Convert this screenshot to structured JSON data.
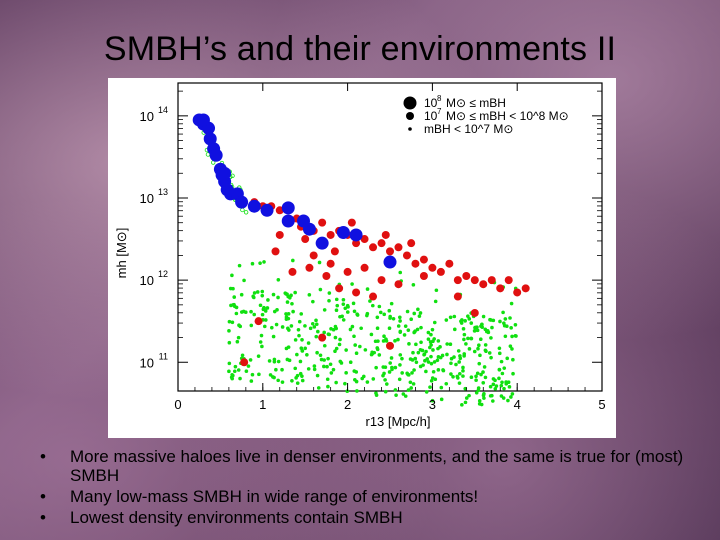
{
  "slide": {
    "title": "SMBH’s and their environments II"
  },
  "bullets": [
    {
      "text": "More massive haloes live in denser environments, and the same is true for (most) SMBH"
    },
    {
      "text": "Many low-mass SMBH in wide range of environments!"
    },
    {
      "text": "Lowest density environments contain SMBH"
    }
  ],
  "colors": {
    "large": "#1010e0",
    "medium": "#e01010",
    "small": "#10e010"
  },
  "chart_data": {
    "type": "scatter",
    "xlabel": "r13 [Mpc/h]",
    "ylabel": "mh [M⊙]",
    "xlim": [
      0,
      5
    ],
    "ylim_log10": [
      10.65,
      14.4
    ],
    "xticks": [
      "0",
      "1",
      "2",
      "3",
      "4",
      "5"
    ],
    "yticks": [
      {
        "base": "10",
        "exp": "11",
        "value": 11
      },
      {
        "base": "10",
        "exp": "12",
        "value": 12
      },
      {
        "base": "10",
        "exp": "13",
        "value": 13
      },
      {
        "base": "10",
        "exp": "14",
        "value": 14
      }
    ],
    "legend": [
      {
        "mass": "10",
        "exp": "8",
        "relation": "M⊙ ≤ mBH",
        "size": "large"
      },
      {
        "mass": "10",
        "exp": "7",
        "relation": "M⊙ ≤ mBH < 10^8 M⊙",
        "size": "medium"
      },
      {
        "mass": "",
        "exp": "",
        "relation": "mBH < 10^7 M⊙",
        "size": "small"
      }
    ],
    "series": [
      {
        "name": "mBH >= 1e8 Msun",
        "color": "#1010e0",
        "marker_size": "large",
        "points": [
          [
            0.25,
            13.95
          ],
          [
            0.3,
            13.9
          ],
          [
            0.36,
            13.85
          ],
          [
            0.38,
            13.72
          ],
          [
            0.42,
            13.6
          ],
          [
            0.45,
            13.52
          ],
          [
            0.5,
            13.35
          ],
          [
            0.52,
            13.28
          ],
          [
            0.55,
            13.2
          ],
          [
            0.58,
            13.1
          ],
          [
            0.62,
            13.05
          ],
          [
            0.7,
            13.05
          ],
          [
            0.75,
            12.95
          ],
          [
            0.9,
            12.9
          ],
          [
            1.3,
            12.88
          ],
          [
            1.05,
            12.85
          ],
          [
            1.3,
            12.72
          ],
          [
            1.55,
            12.62
          ],
          [
            1.48,
            12.72
          ],
          [
            1.7,
            12.45
          ],
          [
            2.5,
            12.22
          ],
          [
            1.95,
            12.58
          ],
          [
            2.1,
            12.55
          ],
          [
            0.3,
            13.95
          ],
          [
            0.55,
            13.3
          ]
        ]
      },
      {
        "name": "1e7 <= mBH < 1e8 Msun",
        "color": "#e01010",
        "marker_size": "medium",
        "points": [
          [
            0.9,
            12.95
          ],
          [
            1.0,
            12.9
          ],
          [
            1.1,
            12.9
          ],
          [
            1.2,
            12.85
          ],
          [
            1.3,
            12.9
          ],
          [
            1.4,
            12.75
          ],
          [
            1.2,
            12.55
          ],
          [
            1.5,
            12.5
          ],
          [
            1.6,
            12.6
          ],
          [
            1.7,
            12.7
          ],
          [
            1.8,
            12.55
          ],
          [
            1.9,
            12.6
          ],
          [
            2.0,
            12.55
          ],
          [
            2.1,
            12.45
          ],
          [
            2.2,
            12.5
          ],
          [
            2.3,
            12.4
          ],
          [
            2.4,
            12.45
          ],
          [
            2.5,
            12.35
          ],
          [
            2.6,
            12.4
          ],
          [
            2.7,
            12.3
          ],
          [
            2.8,
            12.2
          ],
          [
            2.9,
            12.25
          ],
          [
            3.0,
            12.15
          ],
          [
            3.1,
            12.1
          ],
          [
            3.2,
            12.2
          ],
          [
            3.3,
            12.0
          ],
          [
            3.4,
            12.05
          ],
          [
            3.5,
            12.0
          ],
          [
            3.6,
            11.95
          ],
          [
            3.7,
            12.0
          ],
          [
            3.8,
            11.9
          ],
          [
            3.9,
            12.0
          ],
          [
            4.1,
            11.9
          ],
          [
            4.0,
            11.85
          ],
          [
            1.6,
            12.3
          ],
          [
            1.8,
            12.2
          ],
          [
            2.0,
            12.1
          ],
          [
            2.2,
            12.15
          ],
          [
            2.4,
            12.0
          ],
          [
            2.6,
            11.95
          ],
          [
            1.55,
            12.15
          ],
          [
            1.75,
            12.05
          ],
          [
            1.9,
            11.9
          ],
          [
            2.1,
            11.85
          ],
          [
            2.3,
            11.8
          ],
          [
            0.95,
            11.5
          ],
          [
            1.7,
            11.3
          ],
          [
            2.5,
            11.2
          ],
          [
            3.5,
            11.6
          ],
          [
            1.35,
            12.1
          ],
          [
            2.9,
            12.05
          ],
          [
            3.3,
            11.8
          ],
          [
            1.15,
            12.35
          ],
          [
            2.75,
            12.45
          ],
          [
            1.45,
            12.65
          ],
          [
            2.05,
            12.7
          ],
          [
            0.78,
            11.0
          ],
          [
            1.85,
            12.35
          ],
          [
            2.45,
            12.55
          ]
        ]
      },
      {
        "name": "mBH < 1e7 Msun",
        "color": "#10e010",
        "marker_size": "small",
        "generated_count": 520
      }
    ]
  }
}
